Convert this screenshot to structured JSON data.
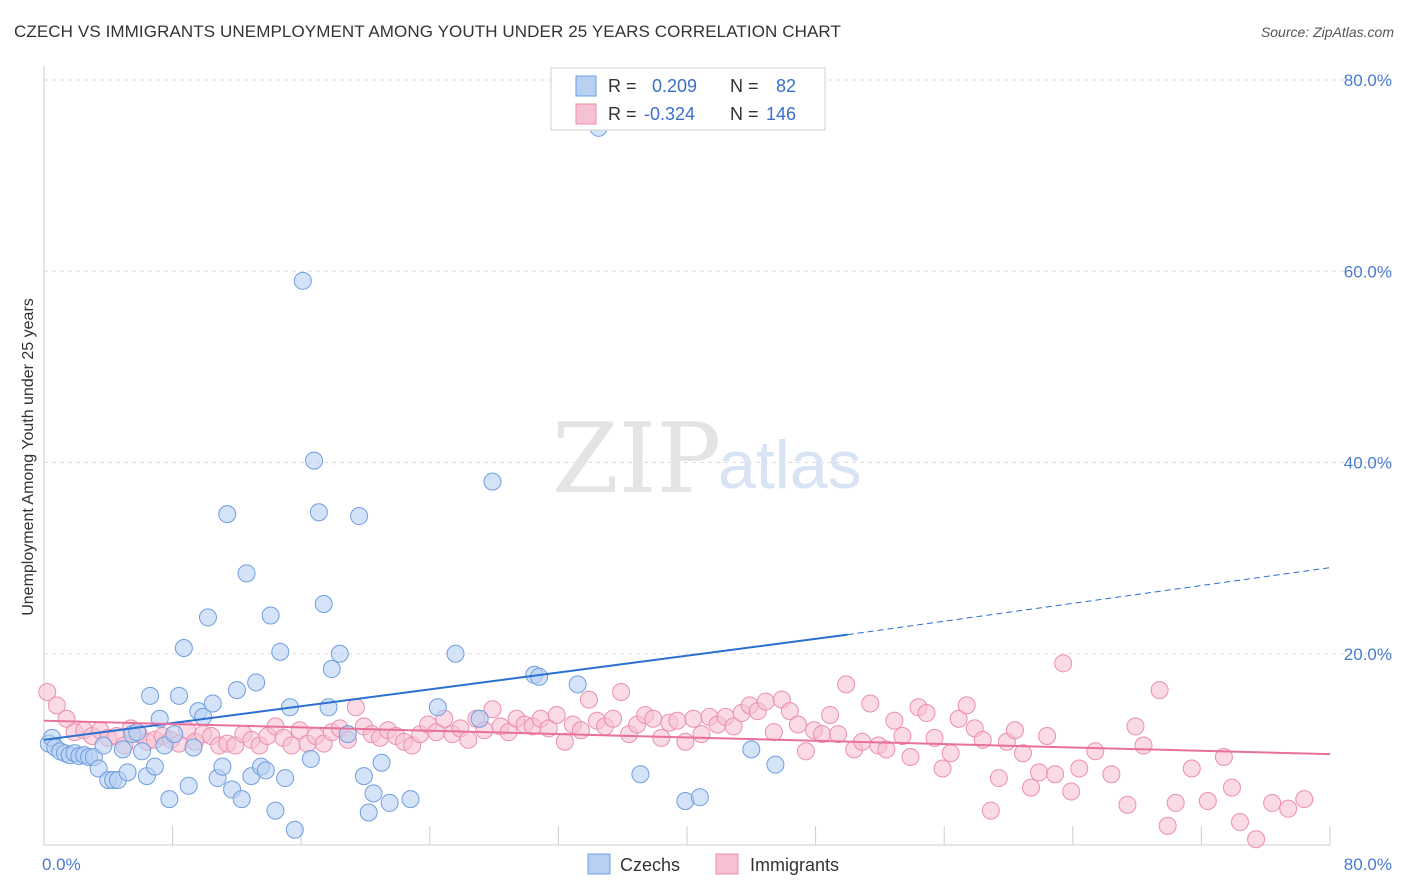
{
  "title": "CZECH VS IMMIGRANTS UNEMPLOYMENT AMONG YOUTH UNDER 25 YEARS CORRELATION CHART",
  "source": "Source: ZipAtlas.com",
  "watermark": {
    "zip": "ZIP",
    "atlas": "atlas"
  },
  "legend": {
    "r_label": "R =",
    "n_label": "N =",
    "rows": [
      {
        "r": "0.209",
        "n": "82"
      },
      {
        "r": "-0.324",
        "n": "146"
      }
    ]
  },
  "bottom_legend": [
    "Czechs",
    "Immigrants"
  ],
  "colors": {
    "czech_fill": "#b8d0f2",
    "czech_stroke": "#6f9ee0",
    "czech_line": "#2a6fd1",
    "imm_fill": "#f6c1d2",
    "imm_stroke": "#ec8fad",
    "imm_line": "#e8709b",
    "tick_text": "#4a7bd0",
    "grid": "#dddddd"
  },
  "chart_data": {
    "type": "scatter",
    "title": "CZECH VS IMMIGRANTS UNEMPLOYMENT AMONG YOUTH UNDER 25 YEARS CORRELATION CHART",
    "xlabel": "",
    "ylabel": "Unemployment Among Youth under 25 years",
    "xlim": [
      0,
      80
    ],
    "ylim": [
      0,
      80
    ],
    "x_tick_labels": [
      "0.0%",
      "80.0%"
    ],
    "y_tick_labels": [
      {
        "value": 20,
        "label": "20.0%"
      },
      {
        "value": 40,
        "label": "40.0%"
      },
      {
        "value": 60,
        "label": "60.0%"
      },
      {
        "value": 80,
        "label": "80.0%"
      }
    ],
    "grid": true,
    "legend_position": "top-center",
    "series": [
      {
        "name": "Czechs",
        "r": 0.209,
        "n": 82,
        "trend": {
          "x0": 0,
          "y0": 11.0,
          "x1": 50,
          "y1": 22.0,
          "dash_x1": 80,
          "dash_y1": 29.0
        },
        "points": [
          [
            0.3,
            10.6
          ],
          [
            0.5,
            11.2
          ],
          [
            0.7,
            10.2
          ],
          [
            1.0,
            9.8
          ],
          [
            1.3,
            9.6
          ],
          [
            1.6,
            9.4
          ],
          [
            1.9,
            9.6
          ],
          [
            2.2,
            9.3
          ],
          [
            2.5,
            9.4
          ],
          [
            2.8,
            9.2
          ],
          [
            3.1,
            9.2
          ],
          [
            3.4,
            8.0
          ],
          [
            3.7,
            10.4
          ],
          [
            4.0,
            6.8
          ],
          [
            4.3,
            6.8
          ],
          [
            4.6,
            6.8
          ],
          [
            4.9,
            10.0
          ],
          [
            5.2,
            7.6
          ],
          [
            5.5,
            11.6
          ],
          [
            5.8,
            11.8
          ],
          [
            6.1,
            9.8
          ],
          [
            6.4,
            7.2
          ],
          [
            6.6,
            15.6
          ],
          [
            6.9,
            8.2
          ],
          [
            7.2,
            13.2
          ],
          [
            7.5,
            10.4
          ],
          [
            7.8,
            4.8
          ],
          [
            8.1,
            11.6
          ],
          [
            8.4,
            15.6
          ],
          [
            8.7,
            20.6
          ],
          [
            9.0,
            6.2
          ],
          [
            9.3,
            10.2
          ],
          [
            9.6,
            14.0
          ],
          [
            9.9,
            13.4
          ],
          [
            10.2,
            23.8
          ],
          [
            10.5,
            14.8
          ],
          [
            10.8,
            7.0
          ],
          [
            11.1,
            8.2
          ],
          [
            11.4,
            34.6
          ],
          [
            11.7,
            5.8
          ],
          [
            12.0,
            16.2
          ],
          [
            12.3,
            4.8
          ],
          [
            12.6,
            28.4
          ],
          [
            12.9,
            7.2
          ],
          [
            13.2,
            17.0
          ],
          [
            13.5,
            8.2
          ],
          [
            13.8,
            7.8
          ],
          [
            14.1,
            24.0
          ],
          [
            14.4,
            3.6
          ],
          [
            14.7,
            20.2
          ],
          [
            15.0,
            7.0
          ],
          [
            15.3,
            14.4
          ],
          [
            15.6,
            1.6
          ],
          [
            16.1,
            59.0
          ],
          [
            16.6,
            9.0
          ],
          [
            16.8,
            40.2
          ],
          [
            17.1,
            34.8
          ],
          [
            17.4,
            25.2
          ],
          [
            17.7,
            14.4
          ],
          [
            17.9,
            18.4
          ],
          [
            18.4,
            20.0
          ],
          [
            18.9,
            11.6
          ],
          [
            19.6,
            34.4
          ],
          [
            19.9,
            7.2
          ],
          [
            20.2,
            3.4
          ],
          [
            20.5,
            5.4
          ],
          [
            21.0,
            8.6
          ],
          [
            21.5,
            4.4
          ],
          [
            22.8,
            4.8
          ],
          [
            24.5,
            14.4
          ],
          [
            25.6,
            20.0
          ],
          [
            27.1,
            13.2
          ],
          [
            27.9,
            38.0
          ],
          [
            30.5,
            17.8
          ],
          [
            30.8,
            17.6
          ],
          [
            33.2,
            16.8
          ],
          [
            34.5,
            75.0
          ],
          [
            37.1,
            7.4
          ],
          [
            39.9,
            4.6
          ],
          [
            40.8,
            5.0
          ],
          [
            44.0,
            10.0
          ],
          [
            45.5,
            8.4
          ]
        ]
      },
      {
        "name": "Immigrants",
        "r": -0.324,
        "n": 146,
        "trend": {
          "x0": 0,
          "y0": 13.0,
          "x1": 80,
          "y1": 9.5
        },
        "points": [
          [
            0.2,
            16.0
          ],
          [
            0.8,
            14.6
          ],
          [
            1.4,
            13.2
          ],
          [
            1.9,
            11.8
          ],
          [
            2.5,
            12.0
          ],
          [
            3.0,
            11.4
          ],
          [
            3.5,
            12.0
          ],
          [
            4.0,
            11.2
          ],
          [
            4.5,
            11.4
          ],
          [
            5.0,
            10.4
          ],
          [
            5.4,
            12.2
          ],
          [
            5.9,
            11.6
          ],
          [
            6.4,
            10.8
          ],
          [
            6.9,
            11.0
          ],
          [
            7.4,
            11.4
          ],
          [
            7.9,
            11.0
          ],
          [
            8.4,
            10.6
          ],
          [
            8.9,
            12.0
          ],
          [
            9.4,
            10.8
          ],
          [
            9.9,
            11.6
          ],
          [
            10.4,
            11.4
          ],
          [
            10.9,
            10.4
          ],
          [
            11.4,
            10.6
          ],
          [
            11.9,
            10.4
          ],
          [
            12.4,
            11.6
          ],
          [
            12.9,
            11.0
          ],
          [
            13.4,
            10.4
          ],
          [
            13.9,
            11.4
          ],
          [
            14.4,
            12.4
          ],
          [
            14.9,
            11.2
          ],
          [
            15.4,
            10.4
          ],
          [
            15.9,
            12.0
          ],
          [
            16.4,
            10.6
          ],
          [
            16.9,
            11.4
          ],
          [
            17.4,
            10.6
          ],
          [
            17.9,
            11.8
          ],
          [
            18.4,
            12.2
          ],
          [
            18.9,
            11.0
          ],
          [
            19.4,
            14.4
          ],
          [
            19.9,
            12.4
          ],
          [
            20.4,
            11.6
          ],
          [
            20.9,
            11.2
          ],
          [
            21.4,
            12.0
          ],
          [
            21.9,
            11.4
          ],
          [
            22.4,
            10.8
          ],
          [
            22.9,
            10.4
          ],
          [
            23.4,
            11.6
          ],
          [
            23.9,
            12.6
          ],
          [
            24.4,
            11.8
          ],
          [
            24.9,
            13.2
          ],
          [
            25.4,
            11.6
          ],
          [
            25.9,
            12.2
          ],
          [
            26.4,
            11.0
          ],
          [
            26.9,
            13.2
          ],
          [
            27.4,
            12.0
          ],
          [
            27.9,
            14.2
          ],
          [
            28.4,
            12.4
          ],
          [
            28.9,
            11.8
          ],
          [
            29.4,
            13.2
          ],
          [
            29.9,
            12.6
          ],
          [
            30.4,
            12.4
          ],
          [
            30.9,
            13.2
          ],
          [
            31.4,
            12.2
          ],
          [
            31.9,
            13.6
          ],
          [
            32.4,
            10.8
          ],
          [
            32.9,
            12.6
          ],
          [
            33.4,
            12.0
          ],
          [
            33.9,
            15.2
          ],
          [
            34.4,
            13.0
          ],
          [
            34.9,
            12.4
          ],
          [
            35.4,
            13.2
          ],
          [
            35.9,
            16.0
          ],
          [
            36.4,
            11.6
          ],
          [
            36.9,
            12.6
          ],
          [
            37.4,
            13.6
          ],
          [
            37.9,
            13.2
          ],
          [
            38.4,
            11.2
          ],
          [
            38.9,
            12.8
          ],
          [
            39.4,
            13.0
          ],
          [
            39.9,
            10.8
          ],
          [
            40.4,
            13.2
          ],
          [
            40.9,
            11.6
          ],
          [
            41.4,
            13.4
          ],
          [
            41.9,
            12.6
          ],
          [
            42.4,
            13.4
          ],
          [
            42.9,
            12.4
          ],
          [
            43.4,
            13.8
          ],
          [
            43.9,
            14.6
          ],
          [
            44.4,
            14.0
          ],
          [
            44.9,
            15.0
          ],
          [
            45.4,
            11.8
          ],
          [
            45.9,
            15.2
          ],
          [
            46.4,
            14.0
          ],
          [
            46.9,
            12.6
          ],
          [
            47.4,
            9.8
          ],
          [
            47.9,
            12.0
          ],
          [
            48.4,
            11.6
          ],
          [
            48.9,
            13.6
          ],
          [
            49.4,
            11.6
          ],
          [
            49.9,
            16.8
          ],
          [
            50.4,
            10.0
          ],
          [
            50.9,
            10.8
          ],
          [
            51.4,
            14.8
          ],
          [
            51.9,
            10.4
          ],
          [
            52.4,
            10.0
          ],
          [
            52.9,
            13.0
          ],
          [
            53.4,
            11.4
          ],
          [
            53.9,
            9.2
          ],
          [
            54.4,
            14.4
          ],
          [
            54.9,
            13.8
          ],
          [
            55.4,
            11.2
          ],
          [
            55.9,
            8.0
          ],
          [
            56.4,
            9.6
          ],
          [
            56.9,
            13.2
          ],
          [
            57.4,
            14.6
          ],
          [
            57.9,
            12.2
          ],
          [
            58.4,
            11.0
          ],
          [
            58.9,
            3.6
          ],
          [
            59.4,
            7.0
          ],
          [
            59.9,
            10.8
          ],
          [
            60.4,
            12.0
          ],
          [
            60.9,
            9.6
          ],
          [
            61.4,
            6.0
          ],
          [
            61.9,
            7.6
          ],
          [
            62.4,
            11.4
          ],
          [
            62.9,
            7.4
          ],
          [
            63.4,
            19.0
          ],
          [
            63.9,
            5.6
          ],
          [
            64.4,
            8.0
          ],
          [
            65.4,
            9.8
          ],
          [
            66.4,
            7.4
          ],
          [
            67.4,
            4.2
          ],
          [
            67.9,
            12.4
          ],
          [
            68.4,
            10.4
          ],
          [
            69.4,
            16.2
          ],
          [
            69.9,
            2.0
          ],
          [
            70.4,
            4.4
          ],
          [
            71.4,
            8.0
          ],
          [
            72.4,
            4.6
          ],
          [
            73.4,
            9.2
          ],
          [
            73.9,
            6.0
          ],
          [
            74.4,
            2.4
          ],
          [
            75.4,
            0.6
          ],
          [
            76.4,
            4.4
          ],
          [
            77.4,
            3.8
          ],
          [
            78.4,
            4.8
          ]
        ]
      }
    ]
  }
}
